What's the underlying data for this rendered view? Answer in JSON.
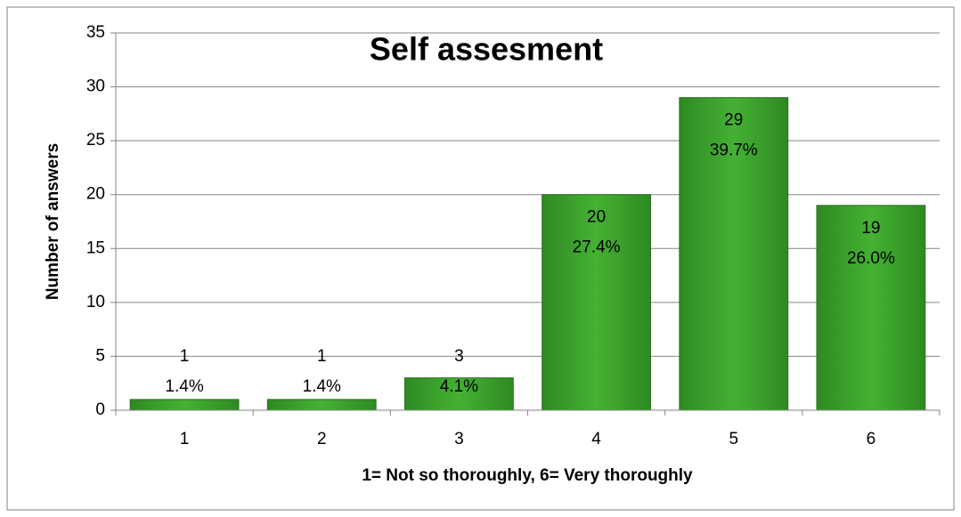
{
  "chart_data": {
    "type": "bar",
    "title": "Self assesment",
    "x_label": "1= Not so thoroughly, 6= Very thoroughly",
    "y_label": "Number of answers",
    "categories": [
      "1",
      "2",
      "3",
      "4",
      "5",
      "6"
    ],
    "values": [
      1,
      1,
      3,
      20,
      29,
      19
    ],
    "percent_labels": [
      "1.4%",
      "1.4%",
      "4.1%",
      "27.4%",
      "39.7%",
      "26.0%"
    ],
    "color": "#3fa62e",
    "ylim": [
      0,
      35
    ],
    "yticks": [
      0,
      5,
      10,
      15,
      20,
      25,
      30,
      35
    ],
    "grid": true
  }
}
